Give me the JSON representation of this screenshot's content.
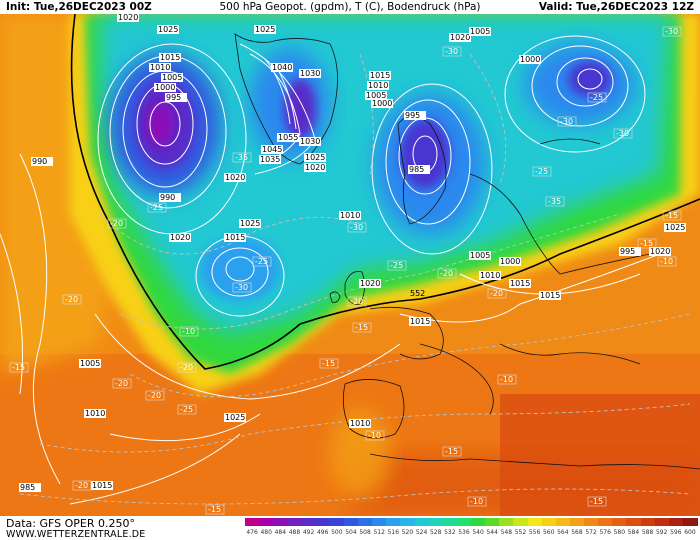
{
  "header": {
    "init": "Init: Tue,26DEC2023 00Z",
    "title": "500 hPa Geopot. (gpdm), T (C), Bodendruck (hPa)",
    "valid": "Valid: Tue,26DEC2023 12Z"
  },
  "footer": {
    "source": "Data: GFS OPER 0.250°",
    "website": "WWW.WETTERZENTRALE.DE"
  },
  "colorscale": {
    "ticks": [
      "476",
      "480",
      "484",
      "488",
      "492",
      "496",
      "500",
      "504",
      "508",
      "512",
      "516",
      "520",
      "524",
      "528",
      "532",
      "536",
      "540",
      "544",
      "548",
      "552",
      "556",
      "560",
      "564",
      "568",
      "572",
      "576",
      "580",
      "584",
      "588",
      "592",
      "596",
      "600"
    ],
    "colors": [
      "#c0008a",
      "#a800a8",
      "#8a10b8",
      "#7020c0",
      "#5a2cc8",
      "#4836d0",
      "#3a44d8",
      "#3058e0",
      "#2c70e8",
      "#2c88ee",
      "#2ca0ee",
      "#28b6e6",
      "#22c8d2",
      "#1ed4b8",
      "#1edc96",
      "#22e070",
      "#30d83c",
      "#60d828",
      "#98e020",
      "#c8e81c",
      "#f0e818",
      "#f8d018",
      "#f8b81a",
      "#f4a018",
      "#f08a16",
      "#ec7414",
      "#e46012",
      "#da4e10",
      "#cc3e10",
      "#be2e12",
      "#aa2012",
      "#901812"
    ]
  },
  "pressure_labels": [
    "1020",
    "1025",
    "1025",
    "1020",
    "1040",
    "1030",
    "1015",
    "1010",
    "1005",
    "1000",
    "995",
    "990",
    "985",
    "1045",
    "1055",
    "1035",
    "1030",
    "1025",
    "1020",
    "1015",
    "1010",
    "1005",
    "1000",
    "995",
    "990",
    "985",
    "1015",
    "1010",
    "1005",
    "1000",
    "1020",
    "1025",
    "1015",
    "1020",
    "1010",
    "1005",
    "1010",
    "1025",
    "1020",
    "1015",
    "1015",
    "1010",
    "1005",
    "1000",
    "995",
    "1020",
    "1025",
    "1015"
  ],
  "temperature_labels": [
    "-30",
    "-30",
    "-35",
    "-25",
    "-25",
    "-30",
    "-30",
    "-25",
    "-20",
    "-25",
    "-30",
    "-35",
    "-30",
    "-25",
    "-20",
    "-15",
    "-10",
    "-20",
    "-20",
    "-25",
    "-20",
    "-15",
    "-10",
    "-15",
    "-20",
    "-20",
    "-15",
    "-10",
    "-15",
    "-10",
    "-10",
    "-15",
    "-20",
    "-20",
    "-15",
    "-15"
  ],
  "height_label": "552"
}
